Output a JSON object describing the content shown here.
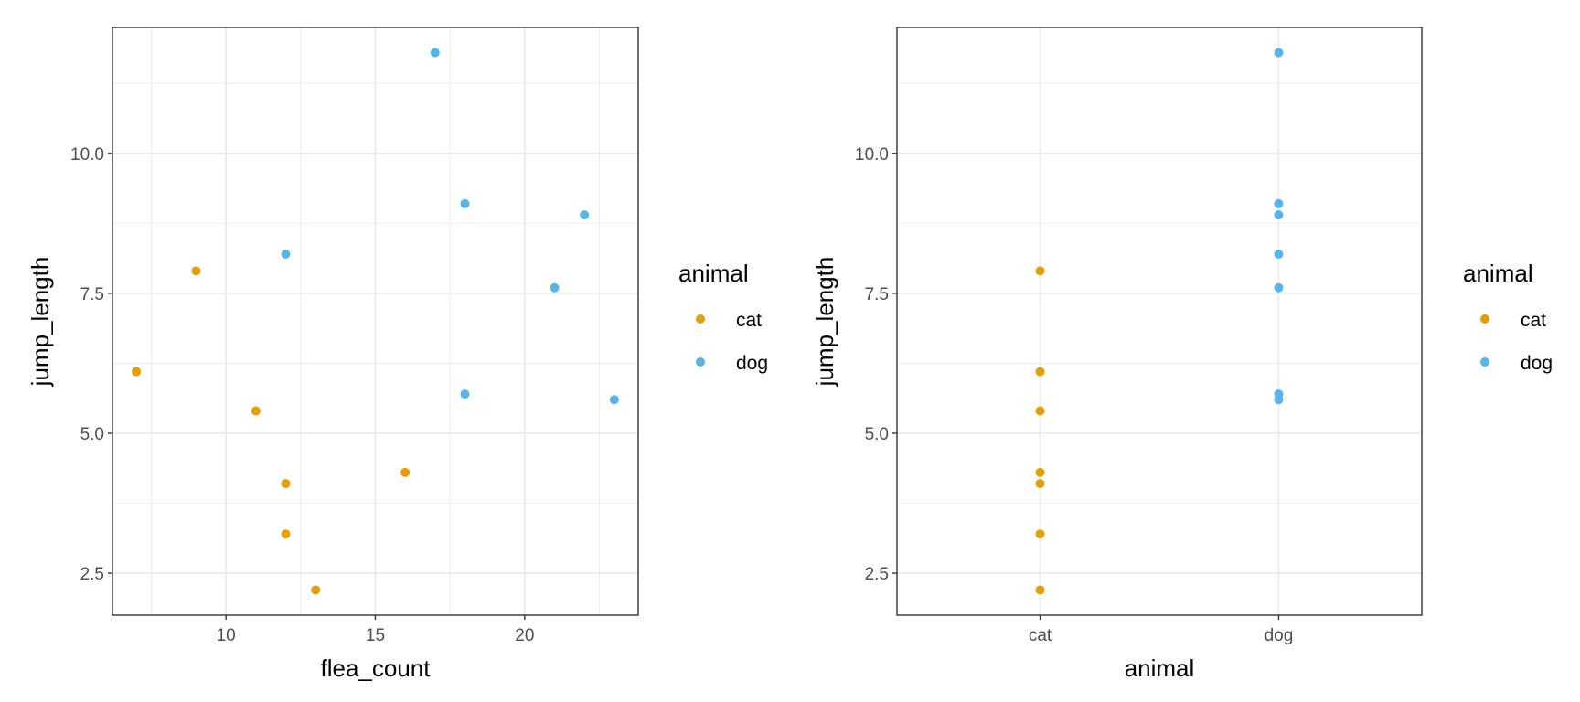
{
  "colors": {
    "cat": "#E69F00",
    "dog": "#56B4E9",
    "grid": "#ebebeb",
    "panel_border": "#333333",
    "tick_text": "#4d4d4d"
  },
  "chart_data": [
    {
      "type": "scatter",
      "xlabel": "flea_count",
      "ylabel": "jump_length",
      "xlim": [
        6.2,
        23.8
      ],
      "ylim": [
        1.75,
        12.25
      ],
      "x_ticks": [
        10,
        15,
        20
      ],
      "x_tick_labels": [
        "10",
        "15",
        "20"
      ],
      "x_minor": [
        7.5,
        12.5,
        17.5,
        22.5
      ],
      "y_ticks": [
        2.5,
        5.0,
        7.5,
        10.0
      ],
      "y_tick_labels": [
        "2.5",
        "5.0",
        "7.5",
        "10.0"
      ],
      "y_minor": [
        3.75,
        6.25,
        8.75,
        11.25
      ],
      "grid": true,
      "legend": {
        "title": "animal",
        "placement": "right",
        "entries": [
          "cat",
          "dog"
        ]
      },
      "series": [
        {
          "name": "cat",
          "points": [
            [
              7,
              6.1
            ],
            [
              9,
              7.9
            ],
            [
              11,
              5.4
            ],
            [
              12,
              4.1
            ],
            [
              12,
              3.2
            ],
            [
              13,
              2.2
            ],
            [
              16,
              4.3
            ]
          ]
        },
        {
          "name": "dog",
          "points": [
            [
              12,
              8.2
            ],
            [
              17,
              11.8
            ],
            [
              18,
              9.1
            ],
            [
              18,
              5.7
            ],
            [
              21,
              7.6
            ],
            [
              22,
              8.9
            ],
            [
              23,
              5.6
            ]
          ]
        }
      ]
    },
    {
      "type": "scatter",
      "xlabel": "animal",
      "ylabel": "jump_length",
      "categories": [
        "cat",
        "dog"
      ],
      "xlim": [
        0.4,
        2.6
      ],
      "ylim": [
        1.75,
        12.25
      ],
      "x_ticks": [
        1,
        2
      ],
      "x_tick_labels": [
        "cat",
        "dog"
      ],
      "x_minor": [],
      "y_ticks": [
        2.5,
        5.0,
        7.5,
        10.0
      ],
      "y_tick_labels": [
        "2.5",
        "5.0",
        "7.5",
        "10.0"
      ],
      "y_minor": [
        3.75,
        6.25,
        8.75,
        11.25
      ],
      "grid": true,
      "legend": {
        "title": "animal",
        "placement": "right",
        "entries": [
          "cat",
          "dog"
        ]
      },
      "series": [
        {
          "name": "cat",
          "points": [
            [
              1,
              6.1
            ],
            [
              1,
              7.9
            ],
            [
              1,
              5.4
            ],
            [
              1,
              4.1
            ],
            [
              1,
              3.2
            ],
            [
              1,
              2.2
            ],
            [
              1,
              4.3
            ]
          ]
        },
        {
          "name": "dog",
          "points": [
            [
              2,
              8.2
            ],
            [
              2,
              11.8
            ],
            [
              2,
              9.1
            ],
            [
              2,
              5.7
            ],
            [
              2,
              7.6
            ],
            [
              2,
              8.9
            ],
            [
              2,
              5.6
            ]
          ]
        }
      ]
    }
  ]
}
